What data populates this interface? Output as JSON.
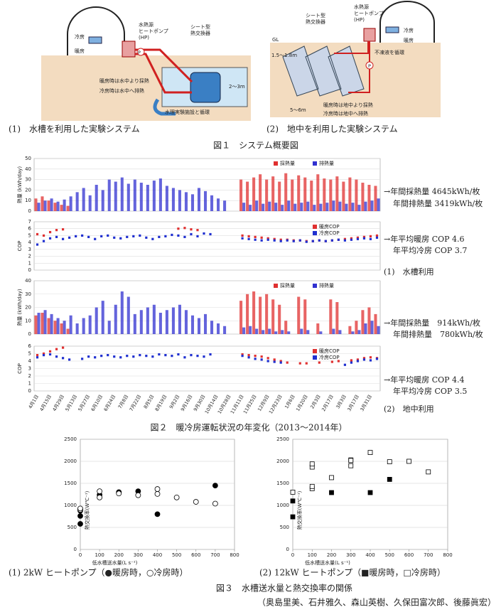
{
  "figure1": {
    "caption": "図１　システム概要図",
    "panels": [
      {
        "label": "(1)　水槽を利用した実験システム",
        "cool": "冷房",
        "heat": "暖房",
        "hp": "水熱源\nヒートポンプ\n(HP)",
        "hx": "シート型\n熱交換器",
        "p": "P",
        "note1": "暖房時は水中より採熱",
        "note2": "冷房時は水中へ排熱",
        "depth": "2～3m",
        "facility": "水理実験施設と循環"
      },
      {
        "label": "(2)　地中を利用した実験システム",
        "hx": "シート型\n熱交換器",
        "hp": "水熱源\nヒートポンプ\n(HP)",
        "cool": "冷房",
        "heat": "暖房",
        "gl": "GL",
        "depth": "1.5～1.8m",
        "antifreeze": "不凍液を循環",
        "p": "P",
        "note1": "暖房時は地中より採熱",
        "note2": "冷房時は地中へ排熱",
        "width": "5～6m"
      }
    ]
  },
  "figure2": {
    "caption": "図２　暖冷房運転状況の年変化（2013～2014年）",
    "categories": [
      "4月1日",
      null,
      "4月15日",
      null,
      "4月29日",
      null,
      "5月13日",
      null,
      "5月27日",
      null,
      "6月10日",
      null,
      "6月24日",
      null,
      "7月8日",
      null,
      "7月22日",
      null,
      "8月5日",
      null,
      "8月19日",
      null,
      "9月2日",
      null,
      "9月16日",
      null,
      "9月30日",
      null,
      "10月14日",
      null,
      "10月28日",
      null,
      "11月11日",
      null,
      "11月25日",
      null,
      "12月9日",
      null,
      "12月23日",
      null,
      "1月6日",
      null,
      "1月20日",
      null,
      "2月3日",
      null,
      "2月17日",
      null,
      "3月3日",
      null,
      "3月17日",
      null,
      "3月31日",
      null
    ],
    "charts": [
      {
        "type": "bar",
        "ylabel": "熱量 (kWh/day)",
        "ylim": [
          0,
          50
        ],
        "yticks": [
          0,
          10,
          20,
          30,
          40,
          50
        ],
        "grid": true,
        "legend": "top-right",
        "series": [
          {
            "name": "採熱量",
            "color": "#e03030",
            "values": [
              12,
              14,
              10,
              8,
              6,
              5,
              0,
              0,
              0,
              0,
              0,
              0,
              0,
              0,
              0,
              0,
              0,
              0,
              0,
              0,
              0,
              0,
              0,
              0,
              0,
              0,
              0,
              0,
              0,
              0,
              0,
              0,
              30,
              28,
              32,
              35,
              30,
              33,
              28,
              36,
              30,
              34,
              32,
              29,
              35,
              31,
              30,
              33,
              28,
              32,
              30,
              27,
              25,
              24
            ]
          },
          {
            "name": "排熱量",
            "color": "#3030d0",
            "values": [
              8,
              10,
              12,
              9,
              11,
              14,
              18,
              22,
              15,
              25,
              20,
              30,
              28,
              32,
              26,
              30,
              27,
              25,
              29,
              31,
              24,
              22,
              20,
              18,
              16,
              22,
              19,
              15,
              12,
              10,
              0,
              0,
              8,
              6,
              10,
              7,
              9,
              8,
              6,
              10,
              7,
              8,
              9,
              6,
              7,
              8,
              10,
              9,
              7,
              8,
              6,
              9,
              10,
              12
            ]
          }
        ]
      },
      {
        "type": "scatter",
        "ylabel": "COP",
        "ylim": [
          0,
          7
        ],
        "yticks": [
          0,
          1,
          2,
          3,
          4,
          5,
          6,
          7
        ],
        "grid": true,
        "legend": "top-right",
        "series": [
          {
            "name": "暖房COP",
            "color": "#e03030",
            "values": [
              5.2,
              5.0,
              5.5,
              5.8,
              5.9,
              null,
              null,
              null,
              null,
              null,
              null,
              null,
              null,
              null,
              null,
              null,
              null,
              null,
              null,
              null,
              null,
              null,
              6.0,
              6.1,
              5.9,
              5.8,
              null,
              null,
              null,
              null,
              null,
              null,
              5.0,
              4.9,
              4.8,
              4.7,
              4.6,
              4.5,
              4.4,
              4.4,
              4.3,
              4.3,
              4.2,
              4.2,
              4.3,
              4.2,
              4.3,
              4.4,
              4.5,
              4.6,
              4.7,
              4.8,
              4.9,
              5.0
            ]
          },
          {
            "name": "冷房COP",
            "color": "#2030d0",
            "values": [
              3.7,
              4.2,
              4.6,
              4.8,
              4.5,
              4.7,
              4.9,
              5.0,
              4.8,
              4.5,
              4.9,
              5.0,
              4.7,
              4.6,
              4.8,
              4.9,
              5.0,
              4.7,
              4.5,
              4.8,
              4.9,
              5.1,
              5.0,
              4.8,
              5.2,
              4.9,
              5.3,
              5.2,
              null,
              null,
              null,
              null,
              4.6,
              4.5,
              4.4,
              4.3,
              4.4,
              4.3,
              4.2,
              4.3,
              4.2,
              4.3,
              4.1,
              4.2,
              4.3,
              4.2,
              4.3,
              4.4,
              4.3,
              4.4,
              4.5,
              4.6,
              4.5,
              4.7
            ]
          }
        ]
      },
      {
        "type": "bar",
        "ylabel": "熱量 (kWh/day)",
        "ylim": [
          0,
          40
        ],
        "yticks": [
          0,
          10,
          20,
          30,
          40
        ],
        "grid": true,
        "legend": "top-right",
        "series": [
          {
            "name": "採熱量",
            "color": "#e03030",
            "values": [
              14,
              16,
              12,
              10,
              8,
              4,
              0,
              0,
              0,
              0,
              0,
              0,
              0,
              0,
              0,
              0,
              0,
              0,
              0,
              0,
              0,
              0,
              0,
              0,
              0,
              0,
              0,
              0,
              0,
              0,
              0,
              0,
              25,
              30,
              32,
              28,
              30,
              26,
              22,
              10,
              0,
              28,
              26,
              0,
              8,
              0,
              26,
              24,
              0,
              6,
              10,
              18,
              20,
              15
            ]
          },
          {
            "name": "排熱量",
            "color": "#3030d0",
            "values": [
              16,
              18,
              15,
              12,
              10,
              14,
              8,
              12,
              14,
              20,
              25,
              10,
              22,
              32,
              28,
              15,
              18,
              20,
              22,
              16,
              18,
              20,
              22,
              18,
              14,
              12,
              15,
              10,
              8,
              6,
              0,
              0,
              5,
              6,
              4,
              3,
              4,
              2,
              3,
              2,
              0,
              4,
              3,
              0,
              2,
              0,
              4,
              3,
              0,
              2,
              3,
              8,
              10,
              6
            ]
          }
        ]
      },
      {
        "type": "scatter",
        "ylabel": "COP",
        "ylim": [
          0,
          6
        ],
        "yticks": [
          0,
          1,
          2,
          3,
          4,
          5,
          6
        ],
        "grid": true,
        "legend": "top-right",
        "series": [
          {
            "name": "暖房COP",
            "color": "#e03030",
            "values": [
              4.8,
              5.0,
              5.3,
              5.6,
              5.8,
              null,
              null,
              null,
              null,
              null,
              null,
              null,
              null,
              null,
              null,
              null,
              null,
              null,
              null,
              null,
              null,
              null,
              null,
              null,
              null,
              null,
              null,
              null,
              null,
              null,
              null,
              null,
              4.9,
              4.8,
              4.7,
              4.6,
              4.4,
              4.2,
              4.0,
              3.8,
              null,
              3.7,
              3.7,
              null,
              3.8,
              null,
              3.9,
              4.0,
              null,
              4.1,
              4.2,
              4.4,
              4.5,
              4.4
            ]
          },
          {
            "name": "冷房COP",
            "color": "#2030d0",
            "values": [
              4.5,
              4.8,
              4.9,
              4.6,
              4.4,
              4.2,
              null,
              4.3,
              4.6,
              4.5,
              4.7,
              4.8,
              4.6,
              4.5,
              4.7,
              4.6,
              4.8,
              4.7,
              4.6,
              4.9,
              4.8,
              4.7,
              4.9,
              4.5,
              4.8,
              4.7,
              4.6,
              4.9,
              null,
              null,
              null,
              null,
              4.7,
              4.5,
              4.3,
              4.2,
              4.0,
              3.9,
              3.8,
              null,
              null,
              null,
              null,
              null,
              null,
              null,
              null,
              null,
              3.5,
              3.8,
              4.0,
              4.2,
              4.1,
              4.3
            ]
          }
        ]
      }
    ],
    "annotations": [
      "→年間採熱量 4645kWh/枚",
      "年間排熱量 3419kWh/枚",
      "→年平均暖房 COP 4.6",
      "年平均冷房 COP 3.7",
      "(1)　水槽利用",
      "→年間採熱量　914kWh/枚",
      "年間排熱量　780kWh/枚",
      "→年平均暖房 COP 4.4",
      "年平均冷房 COP 3.5",
      "(2)　地中利用"
    ]
  },
  "figure3": {
    "caption": "図３　水槽送水量と熱交換率の関係",
    "authors": "（奥島里美、石井雅久、森山英樹、久保田富次郎、後藤眞宏）",
    "charts": [
      {
        "type": "scatter",
        "caption": "(1) 2kW ヒートポンプ（●暖房時，○冷房時）",
        "xlabel": "低水槽送水量(L s⁻¹)",
        "ylabel": "熱交換率(W℃⁻¹)",
        "xlim": [
          0,
          800
        ],
        "ylim": [
          0,
          2500
        ],
        "xticks": [
          0,
          100,
          200,
          300,
          400,
          500,
          600,
          700,
          800
        ],
        "yticks": [
          0,
          500,
          1000,
          1500,
          2000,
          2500
        ],
        "grid": true,
        "series": [
          {
            "marker": "circle",
            "filled": true,
            "x": [
              0,
              0,
              0,
              100,
              200,
              300,
              400,
              700
            ],
            "y": [
              580,
              760,
              880,
              1240,
              1300,
              1320,
              800,
              1450
            ]
          },
          {
            "marker": "circle",
            "filled": false,
            "x": [
              0,
              0,
              100,
              100,
              200,
              300,
              400,
              400,
              500,
              600,
              700
            ],
            "y": [
              900,
              930,
              1180,
              1320,
              1270,
              1230,
              1260,
              1370,
              1180,
              1080,
              1040
            ]
          }
        ]
      },
      {
        "type": "scatter",
        "caption": "(2) 12kW ヒートポンプ（■暖房時，□冷房時）",
        "xlabel": "低水槽送水量(L s⁻¹)",
        "ylabel": "熱交換率(W℃⁻¹)",
        "xlim": [
          0,
          800
        ],
        "ylim": [
          0,
          2500
        ],
        "xticks": [
          0,
          100,
          200,
          300,
          400,
          500,
          600,
          700,
          800
        ],
        "yticks": [
          0,
          500,
          1000,
          1500,
          2000,
          2500
        ],
        "grid": true,
        "series": [
          {
            "marker": "square",
            "filled": true,
            "x": [
              0,
              0,
              200,
              300,
              400,
              500
            ],
            "y": [
              740,
              1100,
              1290,
              2030,
              1290,
              1590
            ]
          },
          {
            "marker": "square",
            "filled": false,
            "x": [
              0,
              100,
              100,
              100,
              100,
              200,
              300,
              300,
              400,
              500,
              600,
              700
            ],
            "y": [
              1300,
              1380,
              1430,
              1870,
              1940,
              1630,
              1900,
              2020,
              2200,
              1990,
              2000,
              1760
            ]
          }
        ]
      }
    ]
  }
}
